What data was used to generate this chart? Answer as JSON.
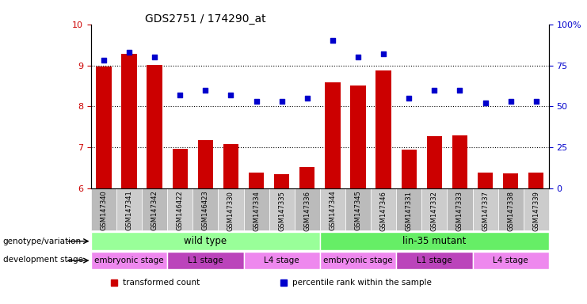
{
  "title": "GDS2751 / 174290_at",
  "samples": [
    "GSM147340",
    "GSM147341",
    "GSM147342",
    "GSM146422",
    "GSM146423",
    "GSM147330",
    "GSM147334",
    "GSM147335",
    "GSM147336",
    "GSM147344",
    "GSM147345",
    "GSM147346",
    "GSM147331",
    "GSM147332",
    "GSM147333",
    "GSM147337",
    "GSM147338",
    "GSM147339"
  ],
  "bar_values": [
    8.97,
    9.28,
    9.02,
    6.97,
    7.18,
    7.08,
    6.38,
    6.35,
    6.53,
    8.58,
    8.51,
    8.88,
    6.95,
    7.27,
    7.29,
    6.38,
    6.36,
    6.38
  ],
  "dot_values": [
    78,
    83,
    80,
    57,
    60,
    57,
    53,
    53,
    55,
    90,
    80,
    82,
    55,
    60,
    60,
    52,
    53,
    53
  ],
  "ylim_left": [
    6,
    10
  ],
  "ylim_right": [
    0,
    100
  ],
  "yticks_left": [
    6,
    7,
    8,
    9,
    10
  ],
  "yticks_right": [
    0,
    25,
    50,
    75,
    100
  ],
  "bar_color": "#cc0000",
  "dot_color": "#0000cc",
  "genotype_groups": [
    {
      "label": "wild type",
      "start": 0,
      "end": 9,
      "color": "#99ff99"
    },
    {
      "label": "lin-35 mutant",
      "start": 9,
      "end": 18,
      "color": "#66ee66"
    }
  ],
  "dev_stage_groups": [
    {
      "label": "embryonic stage",
      "start": 0,
      "end": 3,
      "color": "#ee88ee"
    },
    {
      "label": "L1 stage",
      "start": 3,
      "end": 6,
      "color": "#cc44cc"
    },
    {
      "label": "L4 stage",
      "start": 6,
      "end": 9,
      "color": "#ee88ee"
    },
    {
      "label": "embryonic stage",
      "start": 9,
      "end": 12,
      "color": "#ee88ee"
    },
    {
      "label": "L1 stage",
      "start": 12,
      "end": 15,
      "color": "#cc44cc"
    },
    {
      "label": "L4 stage",
      "start": 15,
      "end": 18,
      "color": "#ee88ee"
    }
  ],
  "legend_items": [
    {
      "label": "transformed count",
      "color": "#cc0000"
    },
    {
      "label": "percentile rank within the sample",
      "color": "#0000cc"
    }
  ],
  "tick_fontsize": 8,
  "title_fontsize": 10,
  "ann_fontsize": 8.5
}
